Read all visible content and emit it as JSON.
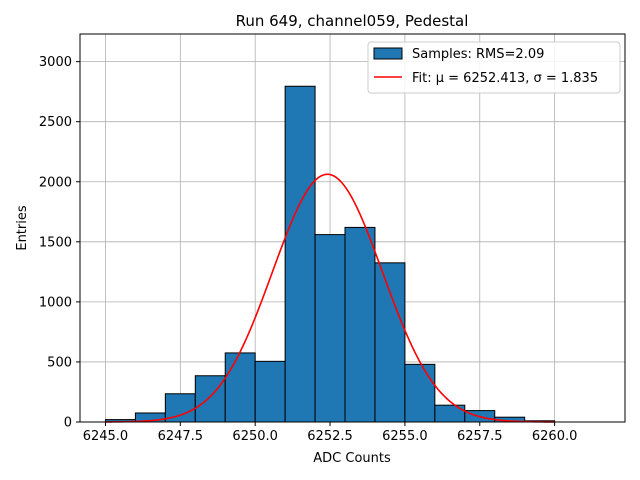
{
  "chart_data": {
    "type": "bar",
    "title": "Run 649, channel059, Pedestal",
    "xlabel": "ADC Counts",
    "ylabel": "Entries",
    "xlim": [
      6244.15,
      6262.35
    ],
    "ylim": [
      0,
      3230
    ],
    "grid": true,
    "x_ticks": [
      6245.0,
      6247.5,
      6250.0,
      6252.5,
      6255.0,
      6257.5,
      6260.0
    ],
    "x_tick_labels": [
      "6245.0",
      "6247.5",
      "6250.0",
      "6252.5",
      "6255.0",
      "6257.5",
      "6260.0"
    ],
    "y_ticks": [
      0,
      500,
      1000,
      1500,
      2000,
      2500,
      3000
    ],
    "y_tick_labels": [
      "0",
      "500",
      "1000",
      "1500",
      "2000",
      "2500",
      "3000"
    ],
    "bin_edges": [
      6245.0,
      6246.0,
      6247.0,
      6248.0,
      6249.0,
      6250.0,
      6251.0,
      6252.0,
      6253.0,
      6254.0,
      6255.0,
      6256.0,
      6257.0,
      6258.0,
      6259.0,
      6260.0,
      6261.0
    ],
    "series": [
      {
        "name": "Samples: RMS=2.09",
        "kind": "histogram",
        "color": "#1f77b4",
        "edgecolor": "#000000",
        "values": [
          20,
          75,
          235,
          385,
          575,
          505,
          2795,
          1560,
          1620,
          1325,
          480,
          140,
          95,
          40,
          10,
          0
        ]
      },
      {
        "name": "Fit: μ = 6252.413, σ = 1.835",
        "kind": "line",
        "color": "#ff0000",
        "mu": 6252.413,
        "sigma": 1.835,
        "amplitude": 2062,
        "x_range": [
          6245.0,
          6260.0
        ]
      }
    ],
    "legend_position": "top-right"
  }
}
